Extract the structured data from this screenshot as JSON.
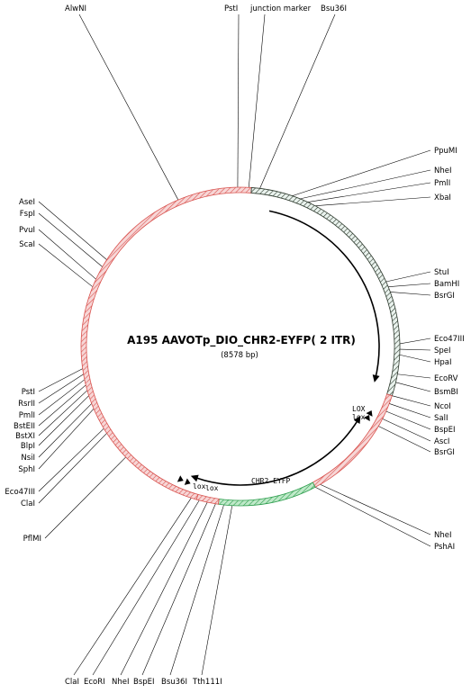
{
  "plasmid": {
    "name": "A195 AAVOTp_DIO_CHR2-EYFP( 2 ITR)",
    "size_label": "(8578 bp)"
  },
  "colors": {
    "backbone": "#d9534f",
    "backbone_fill": "#f2b4b4",
    "insert": "#2f3b2f",
    "insert_fill": "#cfe3da",
    "green": "#2e9e4e",
    "green_fill": "#8fd6a2",
    "line": "#000000"
  },
  "sites": [
    {
      "label": "AlwNI",
      "angle": 337
    },
    {
      "label": "PstI",
      "angle": 359
    },
    {
      "label": "junction marker",
      "angle": 3
    },
    {
      "label": "Bsu36I",
      "angle": 7
    },
    {
      "label": "PpuMI",
      "angle": 19
    },
    {
      "label": "NheI",
      "angle": 22
    },
    {
      "label": "PmlI",
      "angle": 25
    },
    {
      "label": "XbaI",
      "angle": 28
    },
    {
      "label": "StuI",
      "angle": 66
    },
    {
      "label": "BamHI",
      "angle": 68
    },
    {
      "label": "BsrGI",
      "angle": 70
    },
    {
      "label": "Eco47III",
      "angle": 89
    },
    {
      "label": "SpeI",
      "angle": 91
    },
    {
      "label": "HpaI",
      "angle": 93
    },
    {
      "label": "EcoRV",
      "angle": 100
    },
    {
      "label": "BsmBI",
      "angle": 103
    },
    {
      "label": "NcoI",
      "angle": 108
    },
    {
      "label": "SalI",
      "angle": 111
    },
    {
      "label": "BspEI",
      "angle": 114
    },
    {
      "label": "AscI",
      "angle": 117
    },
    {
      "label": "BsrGI",
      "angle": 120
    },
    {
      "label": "NheI",
      "angle": 150
    },
    {
      "label": "PshAI",
      "angle": 152
    },
    {
      "label": "Tth111I",
      "angle": 183
    },
    {
      "label": "Bsu36I",
      "angle": 186
    },
    {
      "label": "BspEI",
      "angle": 189
    },
    {
      "label": "NheI",
      "angle": 192
    },
    {
      "label": "EcoRI",
      "angle": 195
    },
    {
      "label": "ClaI",
      "angle": 198
    },
    {
      "label": "PflMI",
      "angle": 226
    },
    {
      "label": "ClaI",
      "angle": 237
    },
    {
      "label": "Eco47III",
      "angle": 239
    },
    {
      "label": "SphI",
      "angle": 247
    },
    {
      "label": "NsiI",
      "angle": 249
    },
    {
      "label": "BlpI",
      "angle": 252
    },
    {
      "label": "BstXI",
      "angle": 254
    },
    {
      "label": "BstEII",
      "angle": 256
    },
    {
      "label": "PmlI",
      "angle": 258
    },
    {
      "label": "RsrII",
      "angle": 260
    },
    {
      "label": "PstI",
      "angle": 262
    },
    {
      "label": "ScaI",
      "angle": 292
    },
    {
      "label": "PvuI",
      "angle": 295
    },
    {
      "label": "FspI",
      "angle": 300
    },
    {
      "label": "AseI",
      "angle": 303
    }
  ],
  "features": [
    {
      "label": "CHR2-EYFP",
      "type": "arrow"
    },
    {
      "label": "LOX",
      "type": "lox"
    },
    {
      "label": "lox",
      "type": "lox"
    },
    {
      "label": "lox",
      "type": "lox"
    },
    {
      "label": "lox",
      "type": "lox"
    }
  ]
}
